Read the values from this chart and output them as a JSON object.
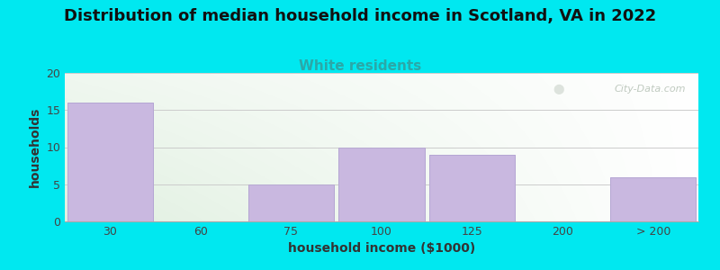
{
  "title": "Distribution of median household income in Scotland, VA in 2022",
  "subtitle": "White residents",
  "xlabel": "household income ($1000)",
  "ylabel": "households",
  "categories": [
    "30",
    "60",
    "75",
    "100",
    "125",
    "200",
    "> 200"
  ],
  "values": [
    16,
    0,
    5,
    10,
    9,
    0,
    6
  ],
  "bar_color": "#c9b8e0",
  "bar_edgecolor": "#b0a0d0",
  "title_fontsize": 13,
  "subtitle_fontsize": 11,
  "subtitle_color": "#2aa8a8",
  "xlabel_fontsize": 10,
  "ylabel_fontsize": 10,
  "ylim": [
    0,
    20
  ],
  "yticks": [
    0,
    5,
    10,
    15,
    20
  ],
  "background_outer": "#00e8f0",
  "background_plot": "#e8f0e0",
  "watermark": "City-Data.com",
  "watermark_color": "#b0bdb0",
  "grid_color": "#cccccc"
}
